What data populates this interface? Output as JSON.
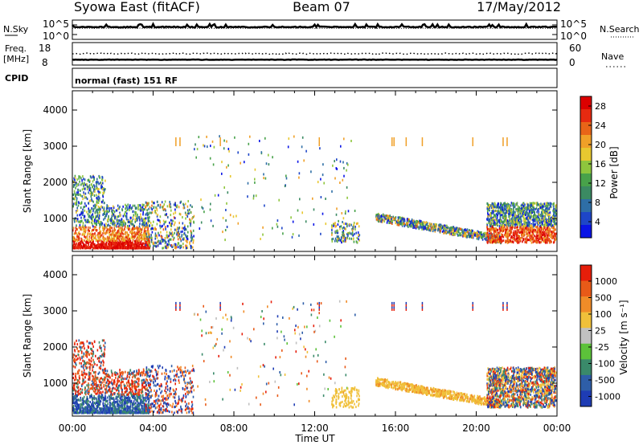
{
  "header": {
    "title": "Syowa East (fitACF)",
    "beam": "Beam 07",
    "date": "17/May/2012"
  },
  "noise_panel": {
    "left_label": "N.Sky",
    "right_label": "N.Search",
    "ticks": [
      "10^5",
      "10^0"
    ]
  },
  "freq_panel": {
    "left_label": "Freq.",
    "left_unit": "[MHz]",
    "left_ticks": [
      "18",
      "8"
    ],
    "right_label": "Nave",
    "right_ticks": [
      "60",
      "0"
    ]
  },
  "cpid": {
    "label": "CPID",
    "value": "normal (fast) 151 RF"
  },
  "x_axis": {
    "label": "Time UT",
    "ticks": [
      "00:00",
      "04:00",
      "08:00",
      "12:00",
      "16:00",
      "20:00",
      "00:00"
    ]
  },
  "chart_data": [
    {
      "type": "heatmap",
      "name": "Power",
      "ylabel": "Slant Range [km]",
      "yticks": [
        "1000",
        "2000",
        "3000",
        "4000"
      ],
      "colorbar": {
        "label": "Power [dB]",
        "ticks": [
          "4",
          "8",
          "12",
          "16",
          "20",
          "24",
          "28"
        ],
        "colors": [
          "#0a14e6",
          "#1e46c8",
          "#2e6ea6",
          "#3b8a62",
          "#48a24a",
          "#8ec63d",
          "#e8c830",
          "#f0a028",
          "#e86418",
          "#e62a10",
          "#dc0000"
        ]
      }
    },
    {
      "type": "heatmap",
      "name": "Velocity",
      "ylabel": "Slant Range [km]",
      "yticks": [
        "1000",
        "2000",
        "3000",
        "4000"
      ],
      "colorbar": {
        "label": "Velocity [m s⁻¹]",
        "ticks": [
          "1000",
          "500",
          "100",
          "25",
          "-25",
          "-100",
          "-500",
          "-1000"
        ],
        "colors": [
          "#1e3cb4",
          "#2e5ea8",
          "#3a8a6a",
          "#5cc23a",
          "#c0c0c0",
          "#f0c03a",
          "#f08c28",
          "#e85a18",
          "#e61e0a"
        ]
      }
    }
  ]
}
